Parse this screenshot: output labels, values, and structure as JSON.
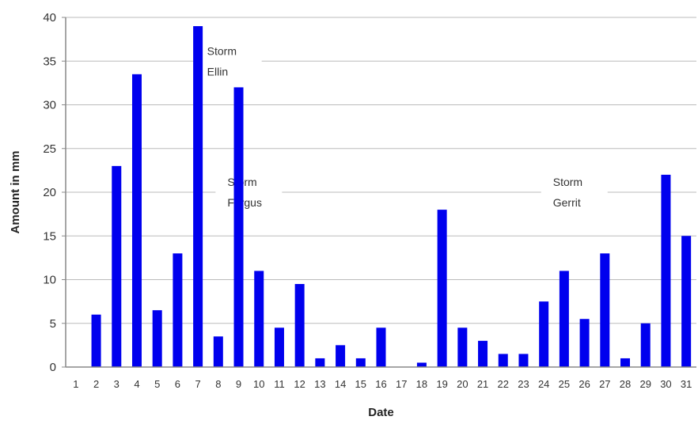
{
  "chart_data": {
    "type": "bar",
    "xlabel": "Date",
    "ylabel": "Amount in mm",
    "ylim": [
      0,
      40
    ],
    "yticks": [
      0,
      5,
      10,
      15,
      20,
      25,
      30,
      35,
      40
    ],
    "grid": "horizontal",
    "bar_color": "#0000ee",
    "grid_color": "#bbbbbb",
    "categories": [
      "1",
      "2",
      "3",
      "4",
      "5",
      "6",
      "7",
      "8",
      "9",
      "10",
      "11",
      "12",
      "13",
      "14",
      "15",
      "16",
      "17",
      "18",
      "19",
      "20",
      "21",
      "22",
      "23",
      "24",
      "25",
      "26",
      "27",
      "28",
      "29",
      "30",
      "31"
    ],
    "values": [
      0,
      6,
      23,
      33.5,
      6.5,
      13,
      39,
      3.5,
      32,
      11,
      4.5,
      9.5,
      1,
      2.5,
      1,
      4.5,
      0,
      0.5,
      18,
      4.5,
      3,
      1.5,
      1.5,
      7.5,
      11,
      5.5,
      13,
      1,
      5,
      22,
      15
    ],
    "annotations": [
      {
        "line1": "Storm",
        "line2": "Ellin",
        "x": 8.5,
        "y": 35
      },
      {
        "line1": "Storm",
        "line2": "Fergus",
        "x": 9.5,
        "y": 20
      },
      {
        "line1": "Storm",
        "line2": "Gerrit",
        "x": 25.5,
        "y": 20
      }
    ]
  }
}
